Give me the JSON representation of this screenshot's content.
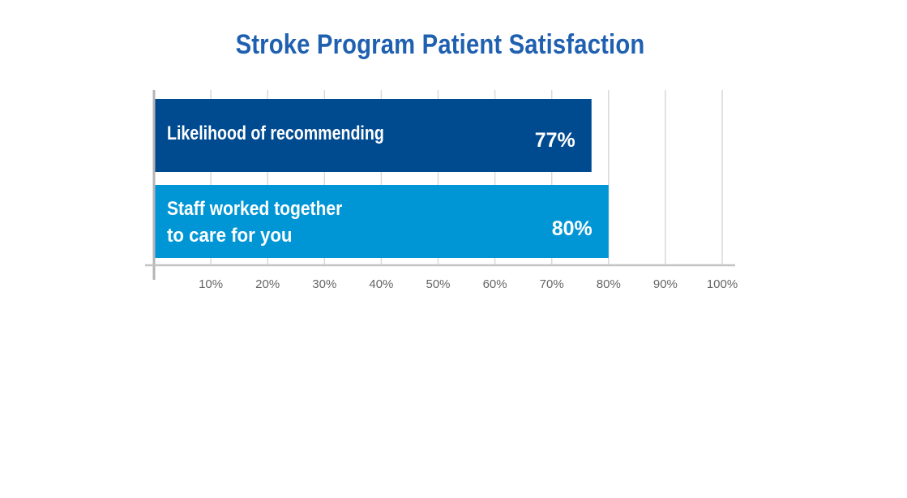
{
  "chart_data": {
    "type": "bar",
    "orientation": "horizontal",
    "title": "Stroke Program Patient Satisfaction",
    "xlabel": "",
    "ylabel": "",
    "xlim": [
      0,
      100
    ],
    "grid": true,
    "legend": "none",
    "categories": [
      [
        "Likelihood of recommending"
      ],
      [
        "Staff worked together",
        "to care for you"
      ]
    ],
    "values": [
      77,
      80
    ],
    "value_labels": [
      "77%",
      "80%"
    ],
    "ticks": [
      10,
      20,
      30,
      40,
      50,
      60,
      70,
      80,
      90,
      100
    ],
    "tick_labels": [
      "10%",
      "20%",
      "30%",
      "40%",
      "50%",
      "60%",
      "70%",
      "80%",
      "90%",
      "100%"
    ],
    "colors": [
      "#004a8f",
      "#0096d6"
    ]
  }
}
